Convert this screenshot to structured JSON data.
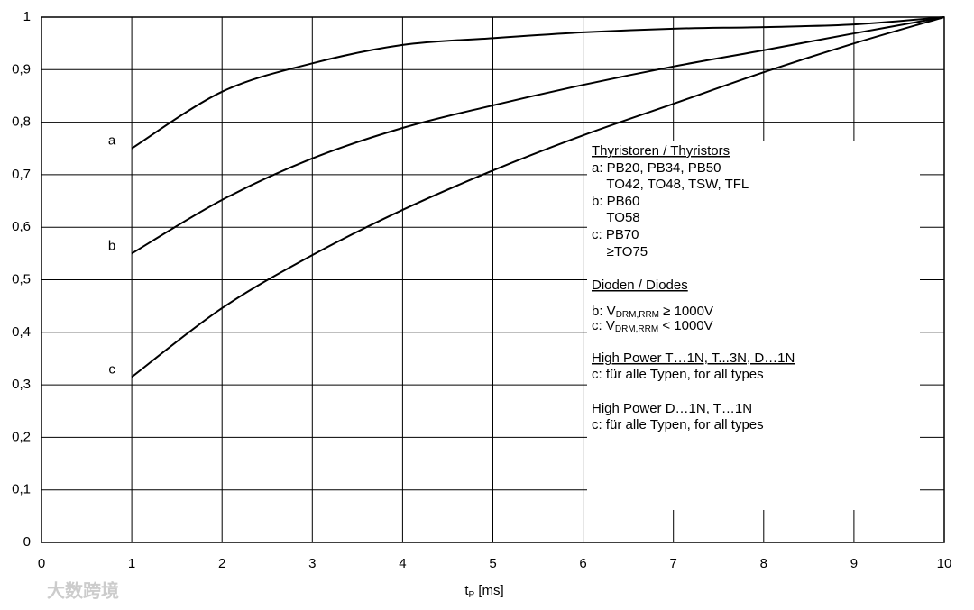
{
  "chart_data": {
    "type": "line",
    "x": [
      1,
      2,
      3,
      4,
      5,
      6,
      7,
      8,
      9,
      10
    ],
    "series": [
      {
        "name": "a",
        "color": "#000000",
        "values": [
          0.75,
          0.858,
          0.912,
          0.947,
          0.96,
          0.971,
          0.978,
          0.981,
          0.986,
          1
        ]
      },
      {
        "name": "b",
        "color": "#000000",
        "values": [
          0.55,
          0.652,
          0.731,
          0.789,
          0.832,
          0.871,
          0.906,
          0.937,
          0.969,
          1
        ]
      },
      {
        "name": "c",
        "color": "#000000",
        "values": [
          0.315,
          0.446,
          0.547,
          0.633,
          0.708,
          0.775,
          0.835,
          0.895,
          0.95,
          1
        ]
      }
    ],
    "xlim": [
      0,
      10
    ],
    "xticks": [
      0,
      1,
      2,
      3,
      4,
      5,
      6,
      7,
      8,
      9,
      10
    ],
    "ylim": [
      0,
      1
    ],
    "yticks": [
      0,
      {
        "value": 0.1,
        "label": "0,1"
      },
      {
        "value": 0.2,
        "label": "0,2"
      },
      {
        "value": 0.3,
        "label": "0,3"
      },
      {
        "value": 0.4,
        "label": "0,4"
      },
      {
        "value": 0.5,
        "label": "0,5"
      },
      {
        "value": 0.6,
        "label": "0,6"
      },
      {
        "value": 0.7,
        "label": "0,7"
      },
      {
        "value": 0.8,
        "label": "0,8"
      },
      {
        "value": 0.9,
        "label": "0,9"
      },
      1
    ],
    "grid": true,
    "x_label": [
      {
        "text": "t"
      },
      {
        "text": "P",
        "sub": true
      },
      {
        "text": " [ms]"
      }
    ],
    "annotations": [
      {
        "parts": [
          {
            "text": "Thyristoren / Thyristors"
          }
        ],
        "underline": true
      },
      {
        "parts": [
          {
            "text": "a: PB20, PB34, PB50"
          }
        ]
      },
      {
        "parts": [
          {
            "text": "    TO42, TO48, TSW, TFL"
          }
        ]
      },
      {
        "parts": [
          {
            "text": "b: PB60"
          }
        ]
      },
      {
        "parts": [
          {
            "text": "    TO58"
          }
        ]
      },
      {
        "parts": [
          {
            "text": "c: PB70"
          }
        ]
      },
      {
        "parts": [
          {
            "text": "    ≥TO75"
          }
        ]
      },
      {
        "parts": [
          {
            "text": "Dioden / Diodes"
          }
        ],
        "underline": true
      },
      {
        "parts": [
          {
            "text": "b: V"
          },
          {
            "text": "DRM,RRM",
            "sub": true
          },
          {
            "text": " ≥ 1000V"
          }
        ]
      },
      {
        "parts": [
          {
            "text": "c: V"
          },
          {
            "text": "DRM,RRM",
            "sub": true
          },
          {
            "text": " < 1000V"
          }
        ]
      },
      {
        "parts": [
          {
            "text": "High Power T…1N, T...3N, D…1N"
          }
        ],
        "underline": true
      },
      {
        "parts": [
          {
            "text": "c: für alle Typen, for all types"
          }
        ]
      },
      {
        "parts": [
          {
            "text": "High Power D…1N, T…1N"
          }
        ]
      },
      {
        "parts": [
          {
            "text": "c: für alle Typen, for all types"
          }
        ]
      }
    ],
    "watermark": "大数跨境"
  }
}
